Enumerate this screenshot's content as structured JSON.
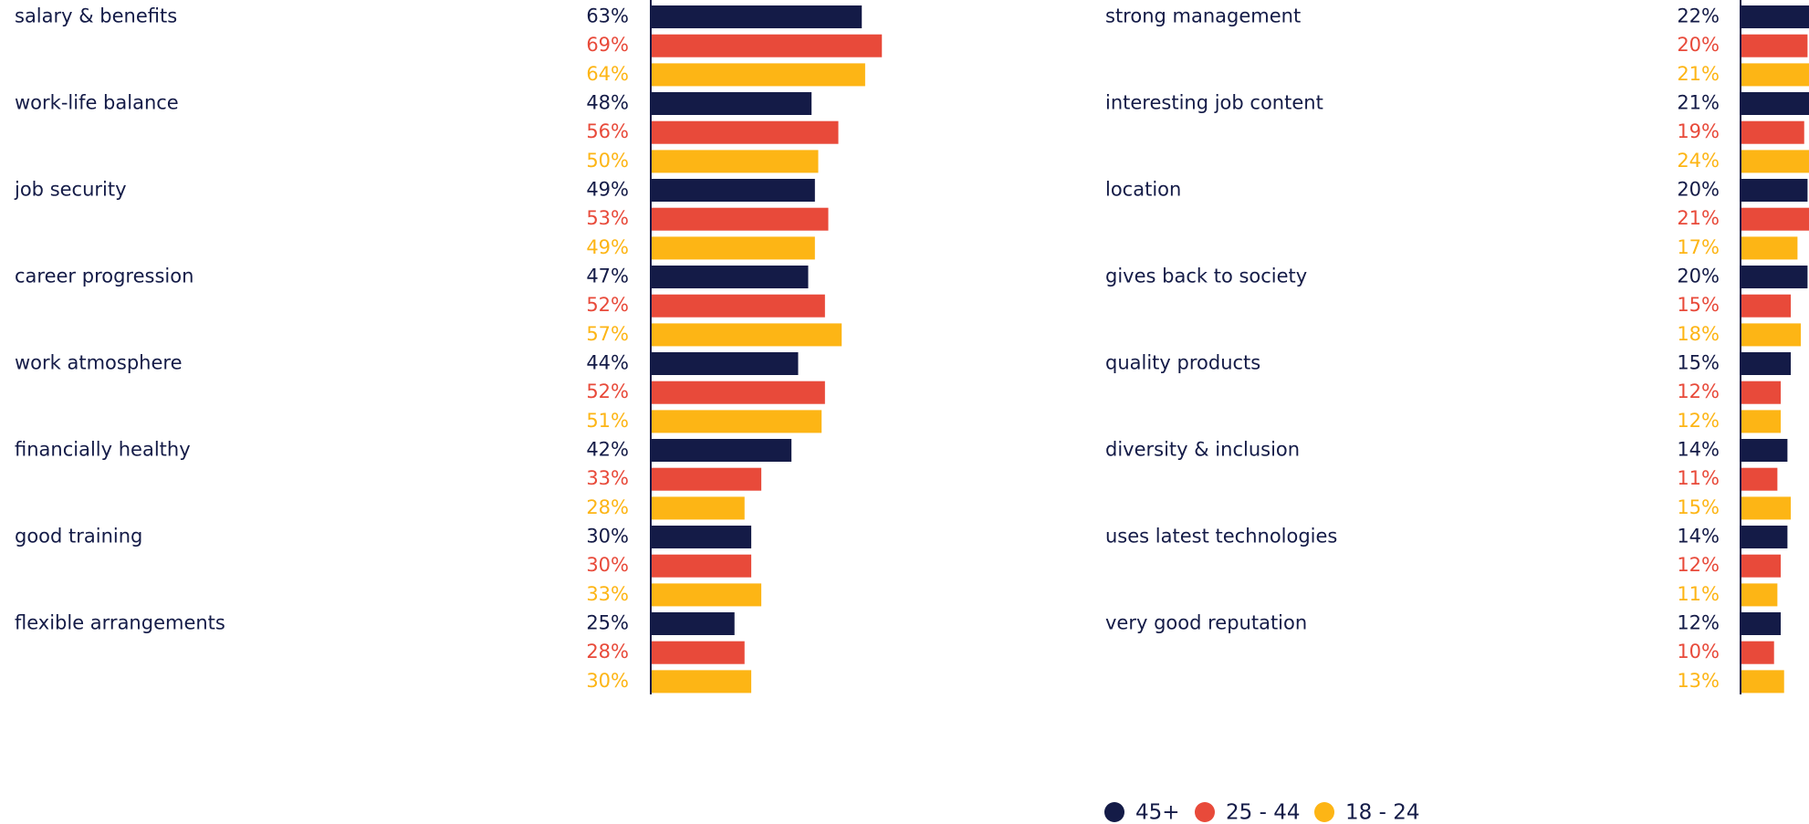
{
  "chart_data": [
    {
      "type": "bar",
      "orientation": "horizontal",
      "categories": [
        "salary & benefits",
        "work-life balance",
        "job security",
        "career progression",
        "work atmosphere",
        "financially healthy",
        "good training",
        "flexible arrangements"
      ],
      "series": [
        {
          "name": "45+",
          "color": "#141b47",
          "values": [
            63,
            48,
            49,
            47,
            44,
            42,
            30,
            25
          ],
          "value_labels": [
            "63%",
            "48%",
            "49%",
            "47%",
            "44%",
            "42%",
            "30%",
            "25%"
          ]
        },
        {
          "name": "25 - 44",
          "color": "#e84a3a",
          "values": [
            69,
            56,
            53,
            52,
            52,
            33,
            30,
            28
          ],
          "value_labels": [
            "69%",
            "56%",
            "53%",
            "52%",
            "52%",
            "33%",
            "30%",
            "28%"
          ]
        },
        {
          "name": "18 - 24",
          "color": "#fdb515",
          "values": [
            64,
            50,
            49,
            57,
            51,
            28,
            33,
            30
          ],
          "value_labels": [
            "64%",
            "50%",
            "49%",
            "57%",
            "51%",
            "28%",
            "33%",
            "30%"
          ]
        }
      ]
    },
    {
      "type": "bar",
      "orientation": "horizontal",
      "categories": [
        "strong management",
        "interesting job content",
        "location",
        "gives back to society",
        "quality products",
        "diversity & inclusion",
        "uses latest technologies",
        "very good reputation"
      ],
      "series": [
        {
          "name": "45+",
          "color": "#141b47",
          "values": [
            22,
            21,
            20,
            20,
            15,
            14,
            14,
            12
          ],
          "value_labels": [
            "22%",
            "21%",
            "20%",
            "20%",
            "15%",
            "14%",
            "14%",
            "12%"
          ]
        },
        {
          "name": "25 - 44",
          "color": "#e84a3a",
          "values": [
            20,
            19,
            21,
            15,
            12,
            11,
            12,
            10
          ],
          "value_labels": [
            "20%",
            "19%",
            "21%",
            "15%",
            "12%",
            "11%",
            "12%",
            "10%"
          ]
        },
        {
          "name": "18 - 24",
          "color": "#fdb515",
          "values": [
            21,
            24,
            17,
            18,
            12,
            15,
            11,
            13
          ],
          "value_labels": [
            "21%",
            "24%",
            "17%",
            "18%",
            "12%",
            "15%",
            "11%",
            "13%"
          ]
        }
      ]
    }
  ]
}
